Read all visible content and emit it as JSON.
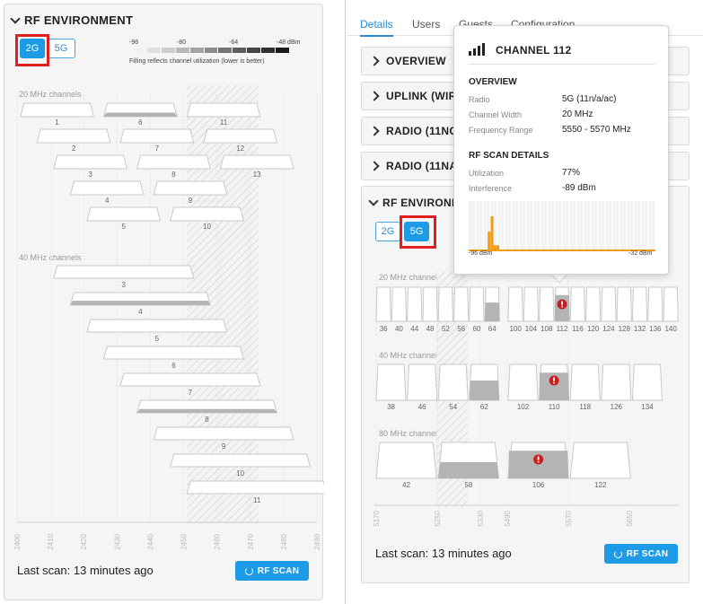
{
  "left": {
    "section_title": "RF ENVIRONMENT",
    "bands": [
      "2G",
      "5G"
    ],
    "scale_labels": [
      "-96",
      "-80",
      "-64",
      "-48 dBm"
    ],
    "scale_note": "Filling reflects channel utilization (lower is better)",
    "label_20": "20 MHz channels",
    "label_40": "40 MHz channels",
    "ch20": [
      {
        "ch": "1",
        "row": 0,
        "c": 2412,
        "util": 0.0
      },
      {
        "ch": "6",
        "row": 0,
        "c": 2437,
        "util": 0.3
      },
      {
        "ch": "11",
        "row": 0,
        "c": 2462,
        "util": 0.0
      },
      {
        "ch": "2",
        "row": 1,
        "c": 2417,
        "util": 0.0
      },
      {
        "ch": "7",
        "row": 1,
        "c": 2442,
        "util": 0.0
      },
      {
        "ch": "12",
        "row": 1,
        "c": 2467,
        "util": 0.0
      },
      {
        "ch": "3",
        "row": 2,
        "c": 2422,
        "util": 0.0
      },
      {
        "ch": "8",
        "row": 2,
        "c": 2447,
        "util": 0.0
      },
      {
        "ch": "13",
        "row": 2,
        "c": 2472,
        "util": 0.0
      },
      {
        "ch": "4",
        "row": 3,
        "c": 2427,
        "util": 0.0
      },
      {
        "ch": "9",
        "row": 3,
        "c": 2452,
        "util": 0.0
      },
      {
        "ch": "5",
        "row": 4,
        "c": 2432,
        "util": 0.0
      },
      {
        "ch": "10",
        "row": 4,
        "c": 2457,
        "util": 0.0
      }
    ],
    "ch40": [
      {
        "ch": "3",
        "c": 2422,
        "util": 0.0
      },
      {
        "ch": "4",
        "c": 2427,
        "util": 0.35
      },
      {
        "ch": "5",
        "c": 2432,
        "util": 0.0
      },
      {
        "ch": "6",
        "c": 2437,
        "util": 0.0
      },
      {
        "ch": "7",
        "c": 2442,
        "util": 0.0
      },
      {
        "ch": "8",
        "c": 2447,
        "util": 0.3
      },
      {
        "ch": "9",
        "c": 2452,
        "util": 0.0
      },
      {
        "ch": "10",
        "c": 2457,
        "util": 0.0
      },
      {
        "ch": "11",
        "c": 2462,
        "util": 0.0
      }
    ],
    "freq_axis": [
      "2400",
      "2410",
      "2420",
      "2430",
      "2440",
      "2450",
      "2460",
      "2470",
      "2480",
      "2490"
    ],
    "last_scan": "Last scan: 13 minutes ago",
    "rf_scan": "RF SCAN"
  },
  "right": {
    "tabs": [
      "Details",
      "Users",
      "Guests",
      "Configuration"
    ],
    "accordions": [
      "OVERVIEW",
      "UPLINK (WIRED)",
      "RADIO (11NG)",
      "RADIO (11NA)"
    ],
    "rf_title": "RF ENVIRONMENT",
    "bands": [
      "2G",
      "5G"
    ],
    "label_20": "20 MHz channels",
    "label_40": "40 MHz channels",
    "label_80": "80 MHz channels",
    "ch20": [
      {
        "ch": "36",
        "util": 0.0
      },
      {
        "ch": "40",
        "util": 0.0
      },
      {
        "ch": "44",
        "util": 0.0
      },
      {
        "ch": "48",
        "util": 0.0
      },
      {
        "ch": "52",
        "util": 0.0
      },
      {
        "ch": "56",
        "util": 0.0
      },
      {
        "ch": "60",
        "util": 0.0
      },
      {
        "ch": "64",
        "util": 0.55
      },
      {
        "ch": "100",
        "util": 0.0
      },
      {
        "ch": "104",
        "util": 0.0
      },
      {
        "ch": "108",
        "util": 0.0
      },
      {
        "ch": "112",
        "util": 0.77,
        "alert": true
      },
      {
        "ch": "116",
        "util": 0.0
      },
      {
        "ch": "120",
        "util": 0.0
      },
      {
        "ch": "124",
        "util": 0.0
      },
      {
        "ch": "128",
        "util": 0.0
      },
      {
        "ch": "132",
        "util": 0.0
      },
      {
        "ch": "136",
        "util": 0.0
      },
      {
        "ch": "140",
        "util": 0.0
      }
    ],
    "ch40": [
      {
        "ch": "38",
        "util": 0.0
      },
      {
        "ch": "46",
        "util": 0.0
      },
      {
        "ch": "54",
        "util": 0.0
      },
      {
        "ch": "62",
        "util": 0.55
      },
      {
        "ch": "102",
        "util": 0.0
      },
      {
        "ch": "110",
        "util": 0.77,
        "alert": true
      },
      {
        "ch": "118",
        "util": 0.0
      },
      {
        "ch": "126",
        "util": 0.0
      },
      {
        "ch": "134",
        "util": 0.0
      }
    ],
    "ch80": [
      {
        "ch": "42",
        "util": 0.0
      },
      {
        "ch": "58",
        "util": 0.45
      },
      {
        "ch": "106",
        "util": 0.77,
        "alert": true
      },
      {
        "ch": "122",
        "util": 0.0
      }
    ],
    "freq_axis": [
      "5170",
      "5250",
      "5330",
      "5490",
      "5570",
      "5650"
    ],
    "last_scan": "Last scan: 13 minutes ago",
    "rf_scan": "RF SCAN"
  },
  "tooltip": {
    "title": "CHANNEL 112",
    "overview": "OVERVIEW",
    "rows1": [
      {
        "k": "Radio",
        "v": "5G (11n/a/ac)"
      },
      {
        "k": "Channel Width",
        "v": "20 MHz"
      },
      {
        "k": "Frequency Range",
        "v": "5550 - 5570 MHz"
      }
    ],
    "scan_title": "RF SCAN DETAILS",
    "rows2": [
      {
        "k": "Utilization",
        "v": "77%"
      },
      {
        "k": "Interference",
        "v": "-89 dBm"
      }
    ],
    "axis_left": "-96 dBm",
    "axis_right": "-32 dBm",
    "spectrum": [
      {
        "dbm": -96,
        "level": 0
      },
      {
        "dbm": -92,
        "level": 0
      },
      {
        "dbm": -89,
        "level": 0.55
      },
      {
        "dbm": -88,
        "level": 1.0
      },
      {
        "dbm": -87,
        "level": 0.15
      },
      {
        "dbm": -86,
        "level": 0.15
      }
    ]
  },
  "colors": {
    "accent": "#1e9be6",
    "highlight": "#e02020",
    "alert": "#c81e1e",
    "spectrum": "#f39c12"
  }
}
